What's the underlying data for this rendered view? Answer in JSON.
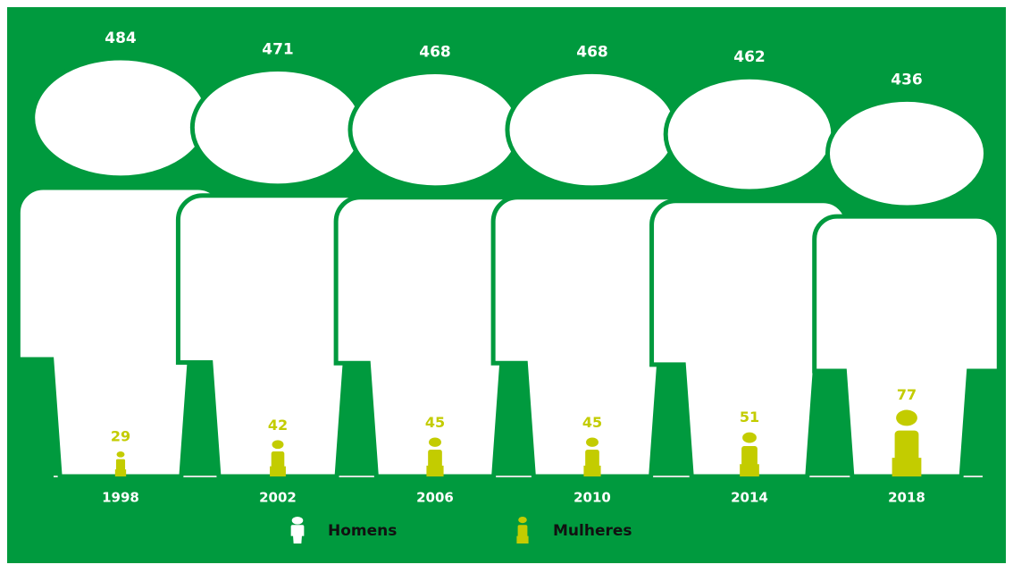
{
  "chart_data": {
    "type": "pictogram",
    "categories": [
      "1998",
      "2002",
      "2006",
      "2010",
      "2014",
      "2018"
    ],
    "series": [
      {
        "name": "Homens",
        "color": "#ffffff",
        "values": [
          484,
          471,
          468,
          468,
          462,
          436
        ]
      },
      {
        "name": "Mulheres",
        "color": "#c3cc00",
        "values": [
          29,
          42,
          45,
          45,
          51,
          77
        ]
      }
    ],
    "background": "#009a3e"
  }
}
